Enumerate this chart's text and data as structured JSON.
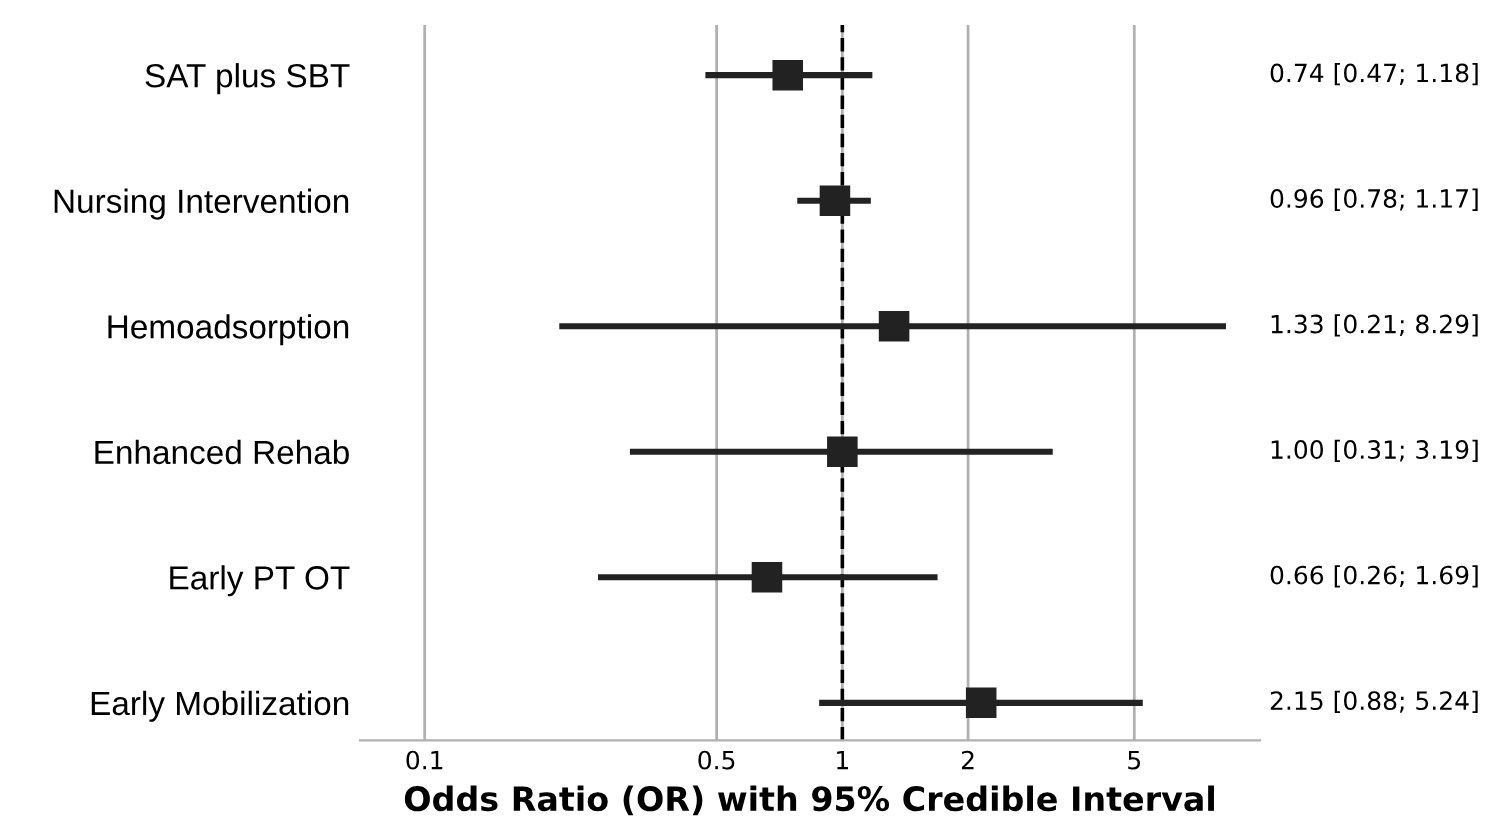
{
  "chart_data": {
    "type": "scatter",
    "orientation": "horizontal",
    "xlabel": "Odds Ratio (OR) with 95% Credible Interval",
    "categories": [
      "SAT plus SBT",
      "Nursing Intervention",
      "Hemoadsorption",
      "Enhanced Rehab",
      "Early PT OT",
      "Early Mobilization"
    ],
    "values": [
      0.74,
      0.96,
      1.33,
      1.0,
      0.66,
      2.15
    ],
    "errors": [
      [
        0.47,
        1.18
      ],
      [
        0.78,
        1.17
      ],
      [
        0.21,
        8.29
      ],
      [
        0.31,
        3.19
      ],
      [
        0.26,
        1.69
      ],
      [
        0.88,
        5.24
      ]
    ],
    "value_labels": [
      "0.74 [0.47; 1.18]",
      "0.96 [0.78; 1.17]",
      "1.33 [0.21; 8.29]",
      "1.00 [0.31; 3.19]",
      "0.66 [0.26; 1.69]",
      "2.15 [0.88; 5.24]"
    ],
    "color": "#222222",
    "marker": "square",
    "log": "x",
    "xlim": [
      0.07,
      10
    ],
    "xticks": [
      0.1,
      0.5,
      1,
      2,
      5
    ],
    "grid": "x",
    "ref_lines": [
      {
        "axis": "x",
        "value": 1,
        "color": "#000000",
        "line_style": "dashed"
      }
    ]
  }
}
